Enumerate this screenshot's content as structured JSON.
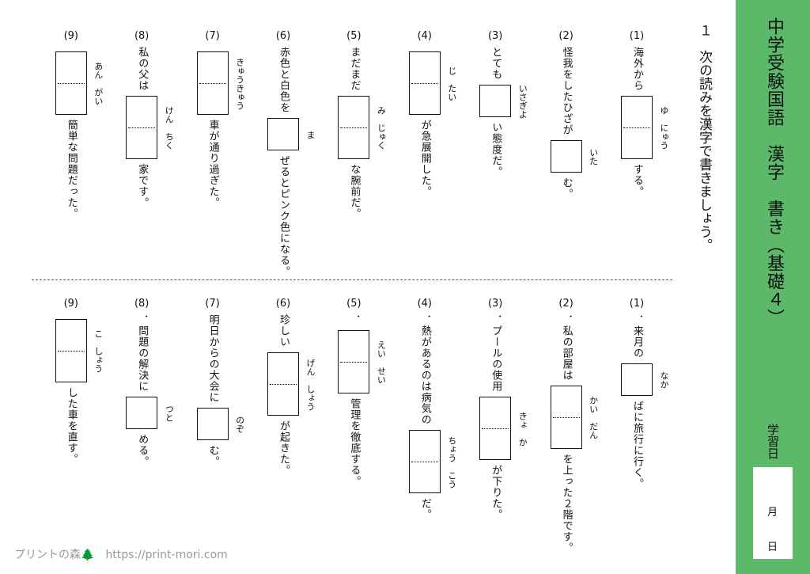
{
  "header": {
    "title": "中学受験国語　漢字　書き（基礎４）",
    "date_label": "学習日",
    "month": "月",
    "day": "日"
  },
  "instruction": {
    "number": "１",
    "text": "次の読みを漢字で書きましょう。"
  },
  "sections": [
    {
      "questions": [
        {
          "number": "(1)",
          "before": "海外から",
          "reading": "ゆ　にゅう",
          "after": "する。"
        },
        {
          "number": "(2)",
          "before": "怪我をしたひざが",
          "reading": "いた",
          "after": "む。"
        },
        {
          "number": "(3)",
          "before": "とても",
          "reading": "いさぎよ",
          "after": "い態度だ。"
        },
        {
          "number": "(4)",
          "reading": "じ　たい",
          "after": "が急展開した。"
        },
        {
          "number": "(5)",
          "before": "まだまだ",
          "reading": "み　じゅく",
          "after": "な腕前だ。"
        },
        {
          "number": "(6)",
          "before": "赤色と白色を",
          "reading": "ま",
          "after": "ぜるとピンク色になる。"
        },
        {
          "number": "(7)",
          "reading": "きゅうきゅう",
          "after": "車が通り過ぎた。"
        },
        {
          "number": "(8)",
          "before": "私の父は",
          "reading": "けん　ちく",
          "after": "家です。"
        },
        {
          "number": "(9)",
          "reading": "あん　がい",
          "after": "簡単な問題だった。"
        }
      ]
    },
    {
      "questions": [
        {
          "number": "(1)",
          "before": "．来月の",
          "reading": "なか",
          "after": "ばに旅行に行く。"
        },
        {
          "number": "(2)",
          "before": "．私の部屋は",
          "reading": "かい　だん",
          "after": "を上った２階です。"
        },
        {
          "number": "(3)",
          "before": "．プールの使用",
          "reading": "きょ　か",
          "after": "が下りた。"
        },
        {
          "number": "(4)",
          "before": "．熱があるのは病気の",
          "reading": "ちょう　こう",
          "after": "だ。"
        },
        {
          "number": "(5)",
          "before": "．",
          "reading": "えい　せい",
          "after": "管理を徹底する。"
        },
        {
          "number": "(6)",
          "before": "珍しい",
          "reading": "げん　しょう",
          "after": "が起きた。"
        },
        {
          "number": "(7)",
          "before": "明日からの大会に",
          "reading": "のぞ",
          "after": "む。"
        },
        {
          "number": "(8)",
          "before": "．問題の解決に",
          "reading": "つと",
          "after": "める。"
        },
        {
          "number": "(9)",
          "reading": "こ　しょう",
          "after": "した車を直す。"
        }
      ]
    }
  ],
  "footer": {
    "site": "プリントの森🌲",
    "url": "https://print-mori.com"
  }
}
